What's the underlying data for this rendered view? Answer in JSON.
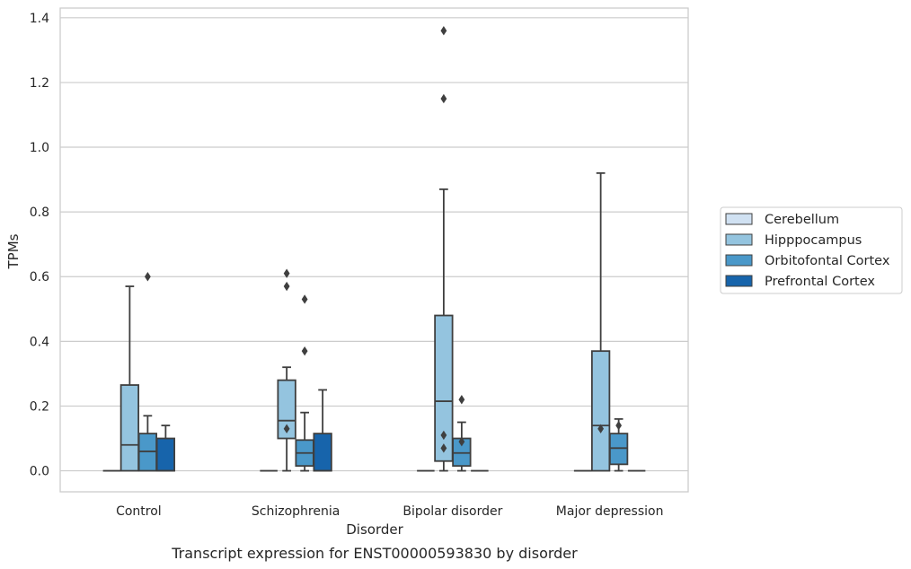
{
  "chart_data": {
    "type": "box",
    "caption": "Transcript expression for ENST00000593830 by disorder",
    "xlabel": "Disorder",
    "ylabel": "TPMs",
    "ylim": [
      -0.065,
      1.43
    ],
    "yticks": [
      "0.0",
      "0.2",
      "0.4",
      "0.6",
      "0.8",
      "1.0",
      "1.2",
      "1.4"
    ],
    "grid": "horizontal",
    "legend_position": "right",
    "categories": [
      "Control",
      "Schizophrenia",
      "Bipolar disorder",
      "Major depression"
    ],
    "series": [
      {
        "name": "Cerebellum",
        "color": "#d0e1f2",
        "boxes": [
          {
            "q1": 0,
            "median": 0,
            "q3": 0,
            "whisker_low": 0,
            "whisker_high": 0,
            "outliers": []
          },
          {
            "q1": 0,
            "median": 0,
            "q3": 0,
            "whisker_low": 0,
            "whisker_high": 0,
            "outliers": []
          },
          {
            "q1": 0,
            "median": 0,
            "q3": 0,
            "whisker_low": 0,
            "whisker_high": 0,
            "outliers": []
          },
          {
            "q1": 0,
            "median": 0,
            "q3": 0,
            "whisker_low": 0,
            "whisker_high": 0,
            "outliers": []
          }
        ]
      },
      {
        "name": "Hipppocampus",
        "color": "#94c4df",
        "boxes": [
          {
            "q1": 0,
            "median": 0.08,
            "q3": 0.265,
            "whisker_low": 0,
            "whisker_high": 0.57,
            "outliers": []
          },
          {
            "q1": 0.1,
            "median": 0.155,
            "q3": 0.28,
            "whisker_low": 0,
            "whisker_high": 0.32,
            "outliers": [
              0.13,
              0.57,
              0.61
            ]
          },
          {
            "q1": 0.03,
            "median": 0.215,
            "q3": 0.48,
            "whisker_low": 0,
            "whisker_high": 0.87,
            "outliers": [
              0.07,
              0.11,
              1.15,
              1.36
            ]
          },
          {
            "q1": 0,
            "median": 0.14,
            "q3": 0.37,
            "whisker_low": 0,
            "whisker_high": 0.92,
            "outliers": [
              0.13
            ]
          }
        ]
      },
      {
        "name": "Orbitofontal Cortex",
        "color": "#4a98c9",
        "boxes": [
          {
            "q1": 0,
            "median": 0.06,
            "q3": 0.115,
            "whisker_low": 0,
            "whisker_high": 0.17,
            "outliers": [
              0.6
            ]
          },
          {
            "q1": 0.015,
            "median": 0.055,
            "q3": 0.095,
            "whisker_low": 0,
            "whisker_high": 0.18,
            "outliers": [
              0.37,
              0.53
            ]
          },
          {
            "q1": 0.015,
            "median": 0.055,
            "q3": 0.1,
            "whisker_low": 0,
            "whisker_high": 0.15,
            "outliers": [
              0.09,
              0.22
            ]
          },
          {
            "q1": 0.02,
            "median": 0.07,
            "q3": 0.115,
            "whisker_low": 0,
            "whisker_high": 0.16,
            "outliers": [
              0.14
            ]
          }
        ]
      },
      {
        "name": "Prefrontal Cortex",
        "color": "#1764ab",
        "boxes": [
          {
            "q1": 0,
            "median": 0,
            "q3": 0.1,
            "whisker_low": 0,
            "whisker_high": 0.14,
            "outliers": []
          },
          {
            "q1": 0,
            "median": 0,
            "q3": 0.115,
            "whisker_low": 0,
            "whisker_high": 0.25,
            "outliers": []
          },
          {
            "q1": 0,
            "median": 0,
            "q3": 0,
            "whisker_low": 0,
            "whisker_high": 0,
            "outliers": []
          },
          {
            "q1": 0,
            "median": 0,
            "q3": 0,
            "whisker_low": 0,
            "whisker_high": 0,
            "outliers": []
          }
        ]
      }
    ]
  }
}
